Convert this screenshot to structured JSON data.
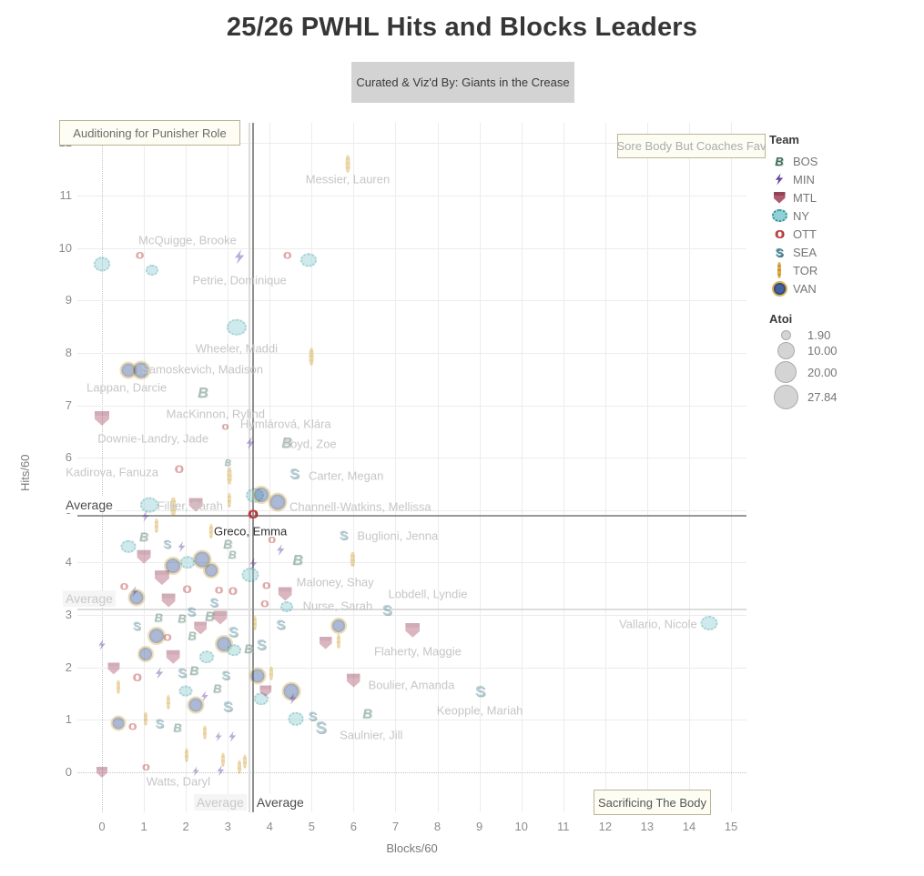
{
  "title": "25/26 PWHL Hits and Blocks Leaders",
  "subtitle": "Curated & Viz'd By: Giants in the Crease",
  "annotation_boxes": {
    "punisher": "Auditioning for Punisher Role",
    "sore_body": "Sore Body But Coaches Fav",
    "sacrifice": "Sacrificing The Body"
  },
  "legend": {
    "team_title": "Team",
    "teams": [
      {
        "code": "BOS",
        "label": "BOS",
        "color": "#3a6456",
        "glyph": "B"
      },
      {
        "code": "MIN",
        "label": "MIN",
        "color": "#5b3a9e",
        "glyph": ""
      },
      {
        "code": "MTL",
        "label": "MTL",
        "color": "#9e4258",
        "glyph": ""
      },
      {
        "code": "NY",
        "label": "NY",
        "color": "#5fb7bd",
        "glyph": ""
      },
      {
        "code": "OTT",
        "label": "OTT",
        "color": "#c54040",
        "glyph": "O"
      },
      {
        "code": "SEA",
        "label": "SEA",
        "color": "#5290a0",
        "glyph": "S"
      },
      {
        "code": "TOR",
        "label": "TOR",
        "color": "#dca739",
        "glyph": ""
      },
      {
        "code": "VAN",
        "label": "VAN",
        "color": "#2c4380",
        "glyph": ""
      }
    ],
    "size_title": "Atoi",
    "sizes": [
      {
        "value": "1.90",
        "diameter": 9
      },
      {
        "value": "10.00",
        "diameter": 17
      },
      {
        "value": "20.00",
        "diameter": 22
      },
      {
        "value": "27.84",
        "diameter": 25
      }
    ]
  },
  "chart_data": {
    "type": "scatter",
    "xlabel": "Blocks/60",
    "ylabel": "Hits/60",
    "x_ticks": [
      0,
      1,
      2,
      3,
      4,
      5,
      6,
      7,
      8,
      9,
      10,
      11,
      12,
      13,
      14,
      15
    ],
    "y_ticks": [
      0,
      1,
      2,
      3,
      4,
      5,
      6,
      7,
      8,
      9,
      10,
      11,
      12
    ],
    "x_range": [
      -0.6,
      15.4
    ],
    "y_range": [
      -0.8,
      12.4
    ],
    "size_legend_range": [
      1.9,
      27.84
    ],
    "avg_lines": [
      {
        "dir": "h",
        "value": 4.91,
        "tone": "dark",
        "label": "Average"
      },
      {
        "dir": "h",
        "value": 3.12,
        "tone": "light",
        "label": "Average"
      },
      {
        "dir": "v",
        "value": 3.58,
        "tone": "dark",
        "label": "Average"
      },
      {
        "dir": "v",
        "value": 3.49,
        "tone": "light",
        "label": "Average"
      }
    ],
    "highlight_point": {
      "team": "OTT",
      "x": 3.59,
      "y": 4.93,
      "s": 14,
      "name": "Greco, Emma"
    },
    "labels": [
      [
        "Messier, Lauren",
        5.86,
        11.31
      ],
      [
        "McQuigge, Brooke",
        2.04,
        10.15
      ],
      [
        "Petrie, Dominique",
        3.28,
        9.39
      ],
      [
        "Wheeler, Maddi",
        3.21,
        8.09
      ],
      [
        "Samoskevich, Madison",
        2.39,
        7.69
      ],
      [
        "Lappan, Darcie",
        0.59,
        7.34
      ],
      [
        "MacKinnon, Rylind",
        2.71,
        6.84
      ],
      [
        "Hymlárová, Klára",
        4.38,
        6.64
      ],
      [
        "Downie-Landry, Jade",
        1.22,
        6.37
      ],
      [
        "Boyd, Zoe",
        4.95,
        6.26
      ],
      [
        "Kadirova, Fanuza",
        0.24,
        5.73
      ],
      [
        "Carter, Megan",
        5.82,
        5.66
      ],
      [
        "Fillier, Sarah",
        2.1,
        5.08
      ],
      [
        "Channell-Watkins, Mellissa",
        6.16,
        5.07
      ],
      [
        "Greco, Emma",
        3.54,
        4.6,
        "dark"
      ],
      [
        "Buglioni, Jenna",
        7.05,
        4.51
      ],
      [
        "Maloney, Shay",
        5.56,
        3.63
      ],
      [
        "Lobdell, Lyndie",
        7.77,
        3.4
      ],
      [
        "Nurse, Sarah",
        5.62,
        3.18
      ],
      [
        "Vallario, Nicole",
        13.26,
        2.83
      ],
      [
        "Flaherty, Maggie",
        7.53,
        2.31
      ],
      [
        "Boulier, Amanda",
        7.38,
        1.67
      ],
      [
        "Keopple, Mariah",
        9.01,
        1.18
      ],
      [
        "Saulnier, Jill",
        6.42,
        0.71
      ],
      [
        "Watts, Daryl",
        1.82,
        -0.17
      ]
    ],
    "points": [
      [
        "TOR",
        5.87,
        11.6,
        14
      ],
      [
        "OTT",
        0.89,
        9.84,
        11
      ],
      [
        "NY",
        0.0,
        9.69,
        14
      ],
      [
        "NY",
        1.2,
        9.57,
        10
      ],
      [
        "MIN",
        3.28,
        9.83,
        16
      ],
      [
        "OTT",
        4.41,
        9.84,
        11
      ],
      [
        "NY",
        4.93,
        9.77,
        14
      ],
      [
        "NY",
        3.22,
        8.49,
        18
      ],
      [
        "TOR",
        5.0,
        7.92,
        14
      ],
      [
        "VAN",
        0.63,
        7.67,
        15
      ],
      [
        "VAN",
        0.93,
        7.67,
        17
      ],
      [
        "BOS",
        2.41,
        7.22,
        16
      ],
      [
        "MTL",
        0.0,
        6.75,
        16
      ],
      [
        "OTT",
        2.93,
        6.58,
        9
      ],
      [
        "MIN",
        3.54,
        6.28,
        14
      ],
      [
        "BOS",
        4.41,
        6.27,
        16
      ],
      [
        "BOS",
        3.0,
        5.89,
        10
      ],
      [
        "OTT",
        1.83,
        5.77,
        12
      ],
      [
        "TOR",
        3.04,
        5.66,
        14
      ],
      [
        "SEA",
        4.59,
        5.68,
        16
      ],
      [
        "NY",
        1.13,
        5.1,
        16
      ],
      [
        "TOR",
        1.7,
        5.07,
        15
      ],
      [
        "MTL",
        2.24,
        5.1,
        15
      ],
      [
        "NY",
        3.65,
        5.28,
        16
      ],
      [
        "VAN",
        3.8,
        5.3,
        16
      ],
      [
        "VAN",
        4.2,
        5.15,
        17
      ],
      [
        "TOR",
        3.04,
        5.19,
        12
      ],
      [
        "SEA",
        5.76,
        4.53,
        14
      ],
      [
        "TOR",
        5.98,
        4.06,
        12
      ],
      [
        "MIN",
        4.26,
        4.24,
        13
      ],
      [
        "BOS",
        4.67,
        4.03,
        16
      ],
      [
        "MIN",
        3.61,
        3.98,
        13
      ],
      [
        "NY",
        3.54,
        3.77,
        15
      ],
      [
        "MTL",
        4.37,
        3.4,
        15
      ],
      [
        "NY",
        4.41,
        3.16,
        10
      ],
      [
        "OTT",
        3.87,
        3.19,
        11
      ],
      [
        "SEA",
        4.26,
        2.81,
        15
      ],
      [
        "SEA",
        6.8,
        3.07,
        16
      ],
      [
        "NY",
        14.48,
        2.85,
        15
      ],
      [
        "MTL",
        7.41,
        2.71,
        16
      ],
      [
        "VAN",
        5.65,
        2.79,
        14
      ],
      [
        "TOR",
        3.65,
        2.85,
        12
      ],
      [
        "MTL",
        5.33,
        2.47,
        14
      ],
      [
        "TOR",
        5.65,
        2.5,
        12
      ],
      [
        "SEA",
        3.8,
        2.41,
        16
      ],
      [
        "MTL",
        6.0,
        1.75,
        15
      ],
      [
        "VAN",
        4.52,
        1.55,
        17
      ],
      [
        "MIN",
        4.55,
        1.4,
        13
      ],
      [
        "NY",
        4.63,
        1.02,
        13
      ],
      [
        "SEA",
        5.02,
        1.08,
        14
      ],
      [
        "SEA",
        5.22,
        0.85,
        18
      ],
      [
        "BOS",
        6.33,
        1.11,
        15
      ],
      [
        "SEA",
        9.02,
        1.55,
        17
      ],
      [
        "MTL",
        0.0,
        0.0,
        12
      ],
      [
        "MIN",
        1.04,
        4.88,
        12
      ],
      [
        "BOS",
        1.0,
        4.5,
        14
      ],
      [
        "NY",
        0.63,
        4.31,
        13
      ],
      [
        "MTL",
        1.0,
        4.11,
        15
      ],
      [
        "VAN",
        1.7,
        3.94,
        16
      ],
      [
        "VAN",
        2.39,
        4.06,
        17
      ],
      [
        "BOS",
        3.0,
        4.36,
        14
      ],
      [
        "BOS",
        3.11,
        4.15,
        12
      ],
      [
        "OTT",
        4.04,
        4.41,
        10
      ],
      [
        "MIN",
        1.9,
        4.3,
        12
      ],
      [
        "TOR",
        2.6,
        4.6,
        12
      ],
      [
        "SEA",
        1.55,
        4.35,
        13
      ],
      [
        "NY",
        2.05,
        4.0,
        12
      ],
      [
        "VAN",
        2.6,
        3.85,
        14
      ],
      [
        "TOR",
        1.3,
        4.7,
        12
      ],
      [
        "OTT",
        0.52,
        3.52,
        11
      ],
      [
        "MIN",
        0.78,
        3.45,
        12
      ],
      [
        "VAN",
        0.83,
        3.33,
        15
      ],
      [
        "MTL",
        1.43,
        3.71,
        16
      ],
      [
        "MTL",
        1.59,
        3.28,
        15
      ],
      [
        "OTT",
        2.02,
        3.49,
        12
      ],
      [
        "SEA",
        2.13,
        3.07,
        14
      ],
      [
        "BOS",
        1.91,
        2.93,
        13
      ],
      [
        "OTT",
        2.78,
        3.45,
        11
      ],
      [
        "OTT",
        3.11,
        3.45,
        12
      ],
      [
        "SEA",
        2.67,
        3.24,
        14
      ],
      [
        "BOS",
        2.57,
        2.97,
        15
      ],
      [
        "SEA",
        0.83,
        2.79,
        13
      ],
      [
        "OTT",
        3.91,
        3.54,
        11
      ],
      [
        "VAN",
        1.3,
        2.6,
        16
      ],
      [
        "MTL",
        2.82,
        2.95,
        15
      ],
      [
        "SEA",
        3.13,
        2.65,
        16
      ],
      [
        "VAN",
        2.9,
        2.45,
        16
      ],
      [
        "NY",
        3.15,
        2.33,
        12
      ],
      [
        "BOS",
        3.5,
        2.36,
        14
      ],
      [
        "BOS",
        1.35,
        2.95,
        13
      ],
      [
        "OTT",
        1.55,
        2.55,
        11
      ],
      [
        "MTL",
        2.35,
        2.75,
        14
      ],
      [
        "BOS",
        2.15,
        2.6,
        13
      ],
      [
        "VAN",
        1.05,
        2.25,
        14
      ],
      [
        "MIN",
        0.0,
        2.43,
        12
      ],
      [
        "MTL",
        0.28,
        1.98,
        13
      ],
      [
        "OTT",
        0.83,
        1.8,
        12
      ],
      [
        "MIN",
        1.37,
        1.89,
        13
      ],
      [
        "SEA",
        1.91,
        1.89,
        15
      ],
      [
        "BOS",
        2.2,
        1.95,
        14
      ],
      [
        "MTL",
        1.7,
        2.2,
        15
      ],
      [
        "NY",
        2.0,
        1.55,
        11
      ],
      [
        "SEA",
        2.95,
        1.85,
        14
      ],
      [
        "BOS",
        2.75,
        1.6,
        13
      ],
      [
        "MIN",
        2.45,
        1.45,
        12
      ],
      [
        "NY",
        2.5,
        2.2,
        12
      ],
      [
        "VAN",
        2.24,
        1.28,
        15
      ],
      [
        "SEA",
        3.0,
        1.23,
        16
      ],
      [
        "TOR",
        0.39,
        1.63,
        11
      ],
      [
        "TOR",
        1.59,
        1.34,
        12
      ],
      [
        "NY",
        3.8,
        1.4,
        12
      ],
      [
        "MTL",
        3.9,
        1.55,
        13
      ],
      [
        "VAN",
        3.72,
        1.84,
        15
      ],
      [
        "TOR",
        4.04,
        1.89,
        11
      ],
      [
        "TOR",
        1.04,
        1.02,
        11
      ],
      [
        "OTT",
        0.72,
        0.85,
        11
      ],
      [
        "VAN",
        0.39,
        0.94,
        13
      ],
      [
        "SEA",
        1.37,
        0.94,
        14
      ],
      [
        "BOS",
        1.8,
        0.85,
        13
      ],
      [
        "TOR",
        2.46,
        0.76,
        11
      ],
      [
        "MIN",
        3.11,
        0.68,
        12
      ],
      [
        "MIN",
        2.78,
        0.68,
        11
      ],
      [
        "TOR",
        2.02,
        0.33,
        11
      ],
      [
        "TOR",
        2.89,
        0.24,
        11
      ],
      [
        "OTT",
        1.04,
        0.07,
        10
      ],
      [
        "MIN",
        2.24,
        0.02,
        11
      ],
      [
        "MIN",
        2.83,
        0.03,
        12
      ],
      [
        "TOR",
        3.28,
        0.1,
        11
      ],
      [
        "TOR",
        3.4,
        0.21,
        11
      ]
    ]
  }
}
